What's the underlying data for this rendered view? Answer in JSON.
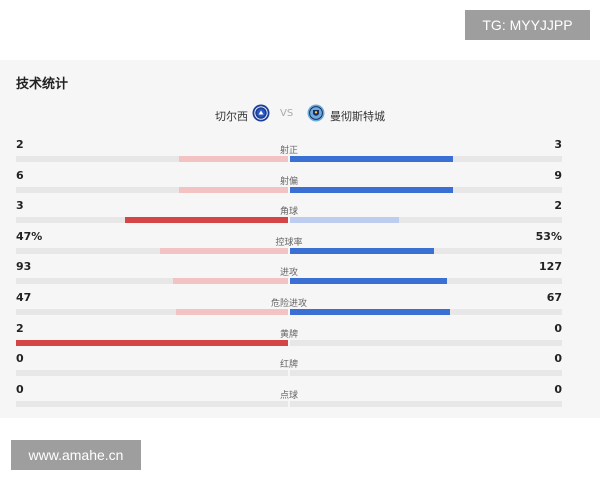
{
  "watermark_top": "TG: MYYJJPP",
  "watermark_bottom": "www.amahe.cn",
  "panel": {
    "title": "技术统计"
  },
  "match": {
    "home": "切尔西",
    "away": "曼彻斯特城",
    "vs": "VS"
  },
  "colors": {
    "home_strong": "#d64545",
    "home_weak": "#f3c3c3",
    "away_strong": "#3a6fd4",
    "away_weak": "#bccdf0",
    "track": "#e7e7e7"
  },
  "icons": {
    "home_badge": "chelsea-crest-icon",
    "away_badge": "man-city-crest-icon"
  },
  "stats": [
    {
      "label": "射正",
      "home": "2",
      "away": "3",
      "home_value": 2,
      "away_value": 3
    },
    {
      "label": "射偏",
      "home": "6",
      "away": "9",
      "home_value": 6,
      "away_value": 9
    },
    {
      "label": "角球",
      "home": "3",
      "away": "2",
      "home_value": 3,
      "away_value": 2
    },
    {
      "label": "控球率",
      "home": "47%",
      "away": "53%",
      "home_value": 47,
      "away_value": 53
    },
    {
      "label": "进攻",
      "home": "93",
      "away": "127",
      "home_value": 93,
      "away_value": 127
    },
    {
      "label": "危险进攻",
      "home": "47",
      "away": "67",
      "home_value": 47,
      "away_value": 67
    },
    {
      "label": "黄牌",
      "home": "2",
      "away": "0",
      "home_value": 2,
      "away_value": 0
    },
    {
      "label": "红牌",
      "home": "0",
      "away": "0",
      "home_value": 0,
      "away_value": 0
    },
    {
      "label": "点球",
      "home": "0",
      "away": "0",
      "home_value": 0,
      "away_value": 0
    }
  ]
}
